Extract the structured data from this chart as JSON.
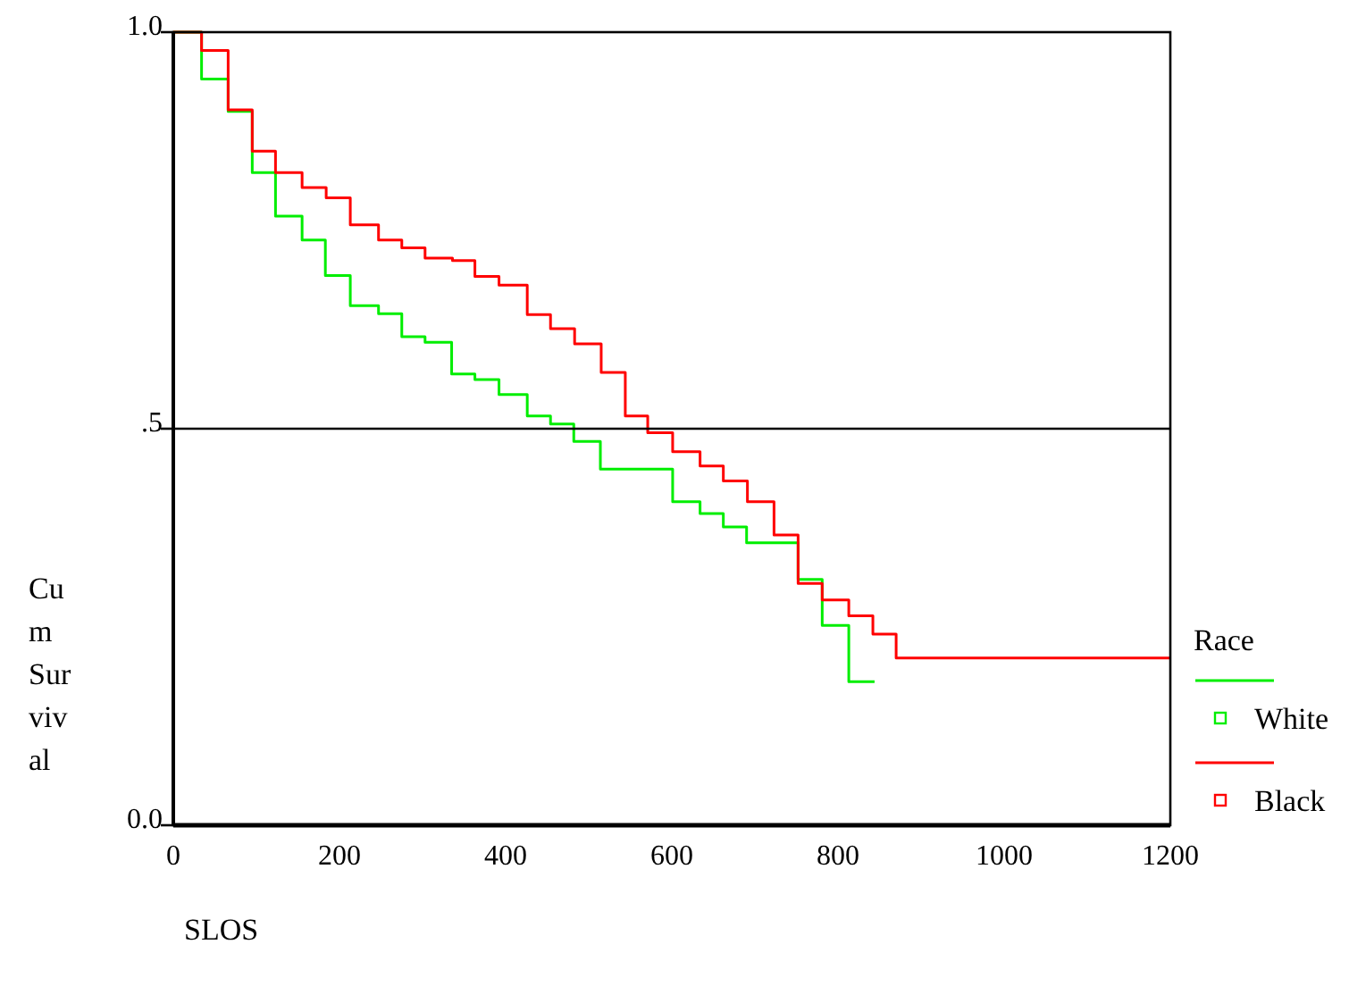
{
  "chart_data": {
    "type": "step",
    "xlabel": "SLOS",
    "ylabel": "Cu m Sur viv al",
    "legend_title": "Race",
    "legend": "right",
    "xlim": [
      0,
      1200
    ],
    "xticks": [
      0,
      200,
      400,
      600,
      800,
      1000,
      1200
    ],
    "ylim": [
      0,
      1
    ],
    "yticks": [
      {
        "value": 0,
        "label": "0.0"
      },
      {
        "value": 0.5,
        "label": ".5"
      },
      {
        "value": 1,
        "label": "1.0"
      }
    ],
    "ref_lines": [
      {
        "axis": "y",
        "value": 0.5,
        "color": "#000000"
      }
    ],
    "series": [
      {
        "name": "White",
        "color": "#00ee00",
        "x": [
          0,
          34,
          66,
          95,
          123,
          155,
          183,
          213,
          247,
          275,
          303,
          335,
          363,
          392,
          426,
          454,
          482,
          514,
          601,
          634,
          662,
          690,
          752,
          781,
          813,
          844
        ],
        "values": [
          1,
          0.941,
          0.9,
          0.823,
          0.768,
          0.738,
          0.693,
          0.655,
          0.645,
          0.616,
          0.609,
          0.569,
          0.562,
          0.543,
          0.516,
          0.506,
          0.484,
          0.449,
          0.408,
          0.393,
          0.376,
          0.356,
          0.31,
          0.252,
          0.181,
          0.181
        ]
      },
      {
        "name": "Black",
        "color": "#ff0000",
        "x": [
          0,
          34,
          66,
          95,
          123,
          155,
          184,
          213,
          247,
          275,
          303,
          336,
          363,
          392,
          426,
          454,
          483,
          515,
          544,
          571,
          601,
          634,
          662,
          691,
          723,
          752,
          781,
          813,
          842,
          870,
          1200
        ],
        "values": [
          1,
          0.977,
          0.902,
          0.85,
          0.823,
          0.804,
          0.791,
          0.757,
          0.738,
          0.728,
          0.715,
          0.712,
          0.692,
          0.681,
          0.644,
          0.626,
          0.607,
          0.571,
          0.516,
          0.495,
          0.471,
          0.453,
          0.434,
          0.408,
          0.366,
          0.305,
          0.284,
          0.264,
          0.241,
          0.211,
          0.211
        ]
      }
    ]
  }
}
